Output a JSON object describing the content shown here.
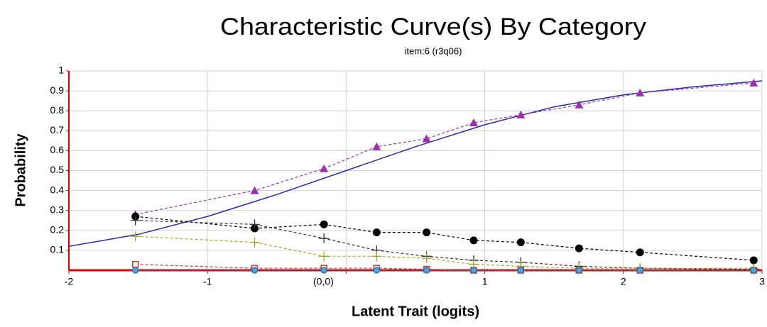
{
  "chart_data": {
    "type": "line",
    "title": "Characteristic Curve(s) By Category",
    "subtitle": "item:6 (r3q06)",
    "x_label": "Latent Trait (logits)",
    "y_label": "Probability",
    "xlim": [
      -2,
      3
    ],
    "ylim": [
      0,
      1
    ],
    "xticks": [
      -2,
      -1,
      {
        "value": 0,
        "label": "(0,0)"
      },
      1,
      2,
      3
    ],
    "yticks": [
      0.1,
      0.2,
      0.3,
      0.4,
      0.5,
      0.6,
      0.7,
      0.8,
      0.9,
      1
    ],
    "grid": true,
    "series": [
      {
        "color": "#2a2aa8",
        "dash": "solid",
        "marker": "none",
        "x": [
          -2,
          -1.5,
          -1,
          -0.5,
          0,
          0.5,
          1,
          1.5,
          2,
          2.5,
          3
        ],
        "values": [
          0.12,
          0.18,
          0.27,
          0.38,
          0.5,
          0.62,
          0.73,
          0.82,
          0.88,
          0.92,
          0.95
        ]
      },
      {
        "color": "#9b2fae",
        "dash": "dashed",
        "marker": "triangle",
        "x": [
          -1.52,
          -0.66,
          -0.16,
          0.22,
          0.58,
          0.92,
          1.26,
          1.68,
          2.12,
          2.94
        ],
        "values": [
          0.28,
          0.4,
          0.51,
          0.62,
          0.66,
          0.74,
          0.78,
          0.83,
          0.89,
          0.94
        ]
      },
      {
        "color": "#000000",
        "dash": "dashed",
        "marker": "dot",
        "x": [
          -1.52,
          -0.66,
          -0.16,
          0.22,
          0.58,
          0.92,
          1.26,
          1.68,
          2.12,
          2.94
        ],
        "values": [
          0.27,
          0.21,
          0.23,
          0.19,
          0.19,
          0.15,
          0.14,
          0.11,
          0.09,
          0.05
        ]
      },
      {
        "color": "#333333",
        "dash": "dashed",
        "marker": "plus",
        "x": [
          -1.52,
          -0.66,
          -0.16,
          0.22,
          0.58,
          0.92,
          1.26,
          1.68,
          2.12,
          2.94
        ],
        "values": [
          0.25,
          0.23,
          0.16,
          0.1,
          0.07,
          0.05,
          0.04,
          0.02,
          0.01,
          0.005
        ]
      },
      {
        "color": "#a8a820",
        "dash": "dashed",
        "marker": "plus",
        "x": [
          -1.52,
          -0.66,
          -0.16,
          0.22,
          0.58,
          0.92,
          1.26,
          1.68,
          2.12,
          2.94
        ],
        "values": [
          0.17,
          0.14,
          0.07,
          0.07,
          0.06,
          0.03,
          0.02,
          0.01,
          0.01,
          0.01
        ]
      },
      {
        "color": "#c0392b",
        "dash": "dashed",
        "marker": "square",
        "x": [
          -1.52,
          -0.66,
          -0.16,
          0.22,
          0.58,
          0.92,
          1.26,
          1.68,
          2.12,
          2.94
        ],
        "values": [
          0.03,
          0.01,
          0.01,
          0.01,
          0.005,
          0,
          0,
          0,
          0,
          0
        ]
      },
      {
        "color": "#1f7fc0",
        "dash": "dotted",
        "marker": "ring",
        "x": [
          -1.52,
          -0.66,
          -0.16,
          0.22,
          0.58,
          0.92,
          1.26,
          1.68,
          2.12,
          2.94
        ],
        "values": [
          0,
          0,
          0,
          0,
          0,
          0,
          0,
          0,
          0,
          0
        ]
      }
    ]
  }
}
